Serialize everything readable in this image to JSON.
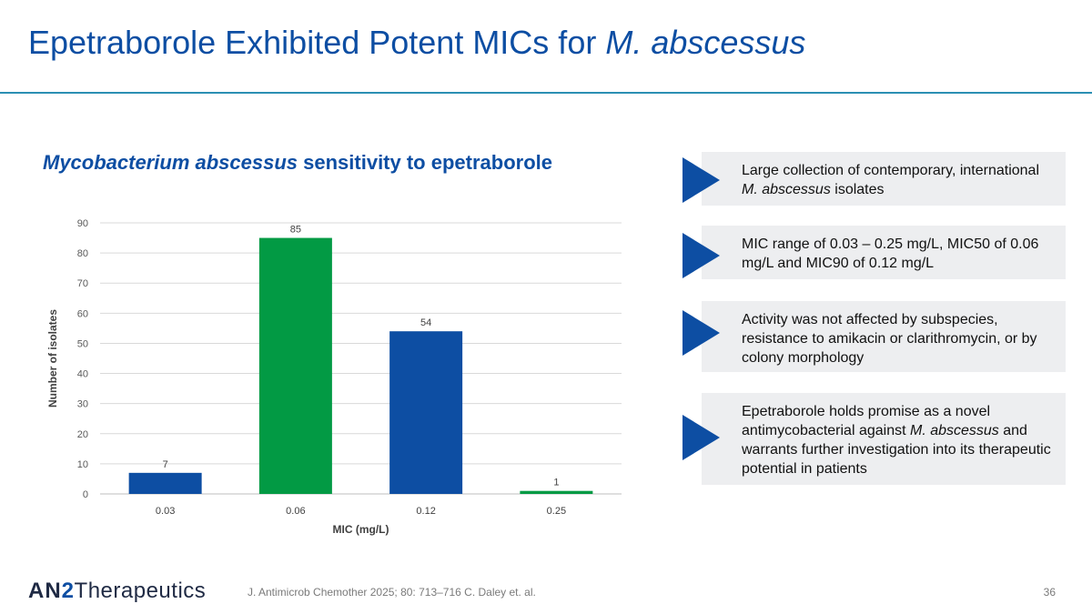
{
  "slide": {
    "title_main": "Epetraborole Exhibited Potent MICs for ",
    "title_italic": "M. abscessus",
    "subtitle_italic": "Mycobacterium abscessus",
    "subtitle_rest": " sensitivity to epetraborole"
  },
  "bullets": [
    {
      "pre": "Large collection of contemporary, international ",
      "italic": "M. abscessus",
      "post": " isolates"
    },
    {
      "pre": "MIC range of 0.03 – 0.25 mg/L, MIC50 of 0.06 mg/L and MIC90 of 0.12 mg/L",
      "italic": "",
      "post": ""
    },
    {
      "pre": "Activity was not affected by subspecies, resistance to amikacin or clarithromycin, or by colony morphology",
      "italic": "",
      "post": ""
    },
    {
      "pre": "Epetraborole holds promise as a novel antimycobacterial against ",
      "italic": "M. abscessus",
      "post": " and warrants further investigation into its therapeutic potential in patients"
    }
  ],
  "footer": {
    "logo_an": "AN",
    "logo_two": "2",
    "logo_rest": "Therapeutics",
    "citation": "J. Antimicrob Chemother 2025; 80: 713–716 C. Daley et. al.",
    "page_number": "36"
  },
  "colors": {
    "title_blue": "#0d4ea3",
    "bar_blue": "#0d4ea3",
    "bar_green": "#029a44",
    "rule_teal": "#2b8fb3",
    "bullet_bg": "#edeef0"
  },
  "chart_data": {
    "type": "bar",
    "categories": [
      "0.03",
      "0.06",
      "0.12",
      "0.25"
    ],
    "values": [
      7,
      85,
      54,
      1
    ],
    "bar_colors": [
      "#0d4ea3",
      "#029a44",
      "#0d4ea3",
      "#029a44"
    ],
    "data_labels": [
      "7",
      "85",
      "54",
      "1"
    ],
    "xlabel": "MIC (mg/L)",
    "ylabel": "Number of isolates",
    "ylim": [
      0,
      90
    ],
    "yticks": [
      0,
      10,
      20,
      30,
      40,
      50,
      60,
      70,
      80,
      90
    ],
    "grid": true,
    "legend": "none"
  }
}
